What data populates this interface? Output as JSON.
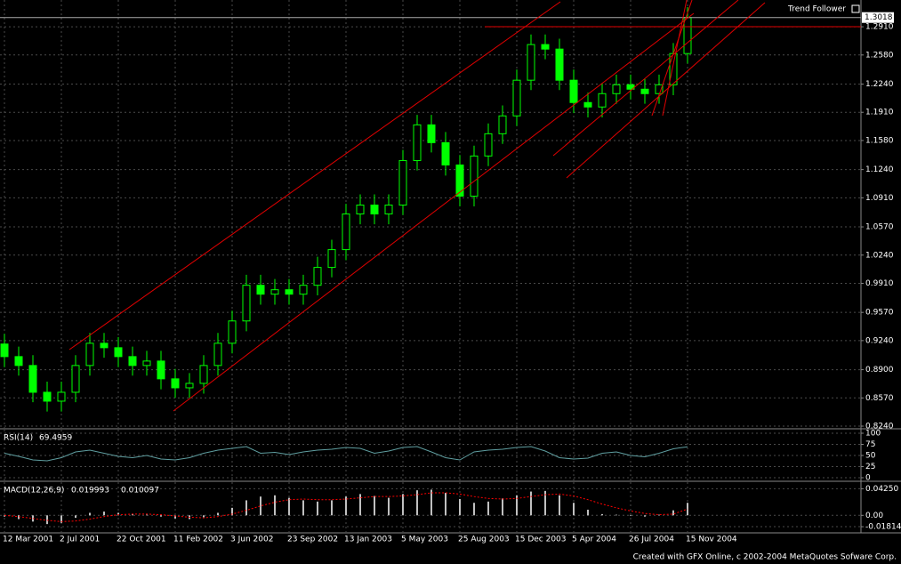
{
  "chart_data": [
    {
      "type": "candlestick",
      "title": "Trend Follower",
      "categories": [
        "12 Mar 2001",
        null,
        null,
        null,
        "2 Jul 2001",
        null,
        null,
        null,
        "22 Oct 2001",
        null,
        null,
        null,
        "11 Feb 2002",
        null,
        null,
        null,
        "3 Jun 2002",
        null,
        null,
        null,
        "23 Sep 2002",
        null,
        null,
        null,
        "13 Jan 2003",
        null,
        null,
        null,
        "5 May 2003",
        null,
        null,
        null,
        "25 Aug 2003",
        null,
        null,
        null,
        "15 Dec 2003",
        null,
        null,
        null,
        "5 Apr 2004",
        null,
        null,
        null,
        "26 Jul 2004",
        null,
        null,
        null,
        "15 Nov 2004"
      ],
      "open": [
        0.92,
        0.9053,
        0.8949,
        0.8636,
        0.8532,
        0.8636,
        0.8949,
        0.9209,
        0.9157,
        0.9053,
        0.8949,
        0.9001,
        0.8793,
        0.8688,
        0.874,
        0.8949,
        0.9209,
        0.947,
        0.9887,
        0.9783,
        0.9835,
        0.9783,
        0.9887,
        1.0096,
        1.0304,
        1.0721,
        1.0825,
        1.0721,
        1.0825,
        1.1346,
        1.1763,
        1.1555,
        1.1294,
        1.0929,
        1.1399,
        1.1659,
        1.1868,
        1.2285,
        1.2702,
        1.2649,
        1.2285,
        1.2024,
        1.1972,
        1.2128,
        1.2232,
        1.218,
        1.2128,
        1.2232,
        1.2597
      ],
      "high": [
        0.932,
        0.917,
        0.907,
        0.876,
        0.876,
        0.907,
        0.933,
        0.933,
        0.928,
        0.917,
        0.912,
        0.912,
        0.891,
        0.886,
        0.907,
        0.933,
        0.959,
        1.001,
        1.001,
        0.996,
        0.996,
        1.001,
        1.022,
        1.042,
        1.084,
        1.095,
        1.095,
        1.095,
        1.147,
        1.188,
        1.188,
        1.168,
        1.141,
        1.152,
        1.178,
        1.199,
        1.241,
        1.282,
        1.282,
        1.277,
        1.241,
        1.214,
        1.225,
        1.235,
        1.235,
        1.23,
        1.235,
        1.272,
        1.314
      ],
      "low": [
        0.893,
        0.883,
        0.852,
        0.841,
        0.841,
        0.852,
        0.883,
        0.904,
        0.893,
        0.883,
        0.883,
        0.867,
        0.857,
        0.857,
        0.862,
        0.883,
        0.909,
        0.935,
        0.966,
        0.966,
        0.966,
        0.966,
        0.977,
        0.998,
        1.018,
        1.06,
        1.06,
        1.06,
        1.071,
        1.123,
        1.144,
        1.117,
        1.081,
        1.081,
        1.128,
        1.154,
        1.175,
        1.217,
        1.253,
        1.217,
        1.19,
        1.185,
        1.185,
        1.201,
        1.206,
        1.201,
        1.201,
        1.211,
        1.248
      ],
      "close": [
        0.9053,
        0.8949,
        0.8636,
        0.8532,
        0.8636,
        0.8949,
        0.9209,
        0.9157,
        0.9053,
        0.8949,
        0.9001,
        0.8793,
        0.8688,
        0.874,
        0.8949,
        0.9209,
        0.947,
        0.9887,
        0.9783,
        0.9835,
        0.9783,
        0.9887,
        1.0096,
        1.0304,
        1.0721,
        1.0825,
        1.0721,
        1.0825,
        1.1346,
        1.1763,
        1.1555,
        1.1294,
        1.0929,
        1.1399,
        1.1659,
        1.1868,
        1.2285,
        1.2702,
        1.2649,
        1.2285,
        1.2024,
        1.1972,
        1.2128,
        1.2232,
        1.218,
        1.2128,
        1.2232,
        1.2597,
        1.3018
      ],
      "color": "#00ff00",
      "current_price": {
        "value": 1.3018,
        "label": "1.3018"
      },
      "ylim": [
        0.8209,
        1.3223
      ],
      "yticks": [
        {
          "value": 0.824,
          "label": "0.8240"
        },
        {
          "value": 0.857,
          "label": "0.8570"
        },
        {
          "value": 0.89,
          "label": "0.8900"
        },
        {
          "value": 0.924,
          "label": "0.9240"
        },
        {
          "value": 0.957,
          "label": "0.9570"
        },
        {
          "value": 0.991,
          "label": "0.9910"
        },
        {
          "value": 1.024,
          "label": "1.0240"
        },
        {
          "value": 1.057,
          "label": "1.0570"
        },
        {
          "value": 1.091,
          "label": "1.0910"
        },
        {
          "value": 1.124,
          "label": "1.1240"
        },
        {
          "value": 1.158,
          "label": "1.1580"
        },
        {
          "value": 1.191,
          "label": "1.1910"
        },
        {
          "value": 1.224,
          "label": "1.2240"
        },
        {
          "value": 1.258,
          "label": "1.2580"
        },
        {
          "value": 1.291,
          "label": "1.2910"
        }
      ],
      "grid": true
    },
    {
      "type": "line",
      "title": "RSI(14)",
      "color": "#5f9ea0",
      "values": [
        55,
        48,
        40,
        38,
        45,
        58,
        62,
        55,
        48,
        45,
        50,
        42,
        40,
        45,
        55,
        62,
        66,
        70,
        55,
        57,
        52,
        58,
        62,
        64,
        68,
        66,
        55,
        60,
        68,
        70,
        58,
        45,
        40,
        58,
        62,
        64,
        68,
        70,
        60,
        45,
        42,
        44,
        55,
        58,
        50,
        47,
        55,
        65,
        69.4959
      ],
      "ylim": [
        -8,
        108
      ],
      "yticks": [
        0,
        25,
        50,
        75,
        100
      ],
      "grid": true
    },
    {
      "type": "macd",
      "title": "MACD(12,26,9)",
      "series": [
        {
          "color": "#c0c0c0",
          "values": [
            -0.002,
            -0.006,
            -0.01,
            -0.014,
            -0.012,
            -0.004,
            0.004,
            0.006,
            0.004,
            0.002,
            0.001,
            -0.002,
            -0.005,
            -0.006,
            -0.003,
            0.004,
            0.012,
            0.024,
            0.03,
            0.032,
            0.028,
            0.024,
            0.022,
            0.024,
            0.03,
            0.034,
            0.031,
            0.028,
            0.034,
            0.04,
            0.041,
            0.036,
            0.026,
            0.02,
            0.022,
            0.027,
            0.032,
            0.038,
            0.039,
            0.032,
            0.02,
            0.009,
            0.002,
            0.001,
            -0.001,
            -0.002,
            0.001,
            0.008,
            0.019993
          ]
        },
        {
          "color": "#ff0000",
          "values": [
            0,
            -0.002,
            -0.005,
            -0.008,
            -0.01,
            -0.009,
            -0.006,
            -0.002,
            0.001,
            0.002,
            0.002,
            0.001,
            -0.001,
            -0.003,
            -0.004,
            -0.002,
            0.002,
            0.008,
            0.015,
            0.021,
            0.025,
            0.026,
            0.025,
            0.025,
            0.026,
            0.028,
            0.03,
            0.03,
            0.031,
            0.033,
            0.036,
            0.036,
            0.034,
            0.03,
            0.027,
            0.026,
            0.027,
            0.03,
            0.033,
            0.034,
            0.031,
            0.025,
            0.018,
            0.012,
            0.007,
            0.003,
            0.001,
            0.002,
            0.010097
          ]
        }
      ],
      "ylim": [
        -0.028,
        0.053
      ],
      "yticks": [
        {
          "value": -0.01814,
          "label": "-0.01814"
        },
        {
          "value": 0,
          "label": "0.00"
        },
        {
          "value": 0.0425,
          "label": "0.04250"
        }
      ],
      "grid": true
    }
  ],
  "footer": "Created with GFX Online, c 2002-2004 MetaQuotes Sofware Corp."
}
